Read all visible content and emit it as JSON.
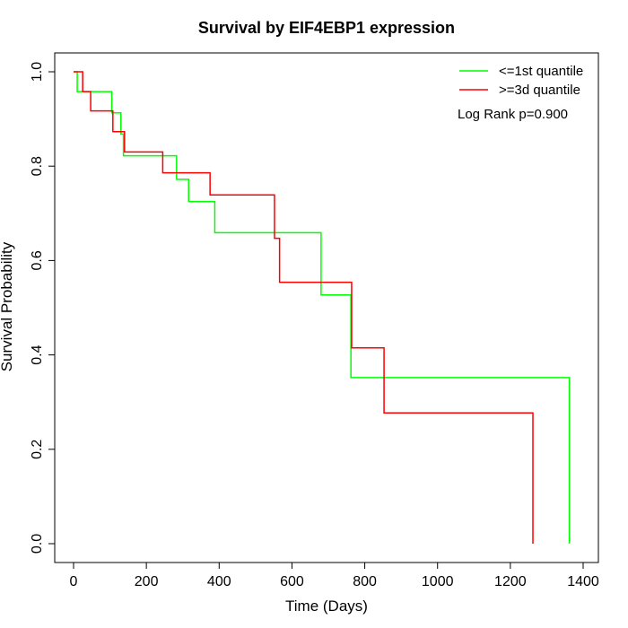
{
  "chart_data": {
    "type": "line",
    "title": "Survival by EIF4EBP1 expression",
    "xlabel": "Time (Days)",
    "ylabel": "Survival Probability",
    "xlim": [
      0,
      1400
    ],
    "ylim": [
      0,
      1
    ],
    "xticks": [
      0,
      200,
      400,
      600,
      800,
      1000,
      1200,
      1400
    ],
    "yticks": [
      0.0,
      0.2,
      0.4,
      0.6,
      0.8,
      1.0
    ],
    "xtick_labels": [
      "0",
      "200",
      "400",
      "600",
      "800",
      "1000",
      "1200",
      "1400"
    ],
    "ytick_labels": [
      "0.0",
      "0.2",
      "0.4",
      "0.6",
      "0.8",
      "1.0"
    ],
    "grid": false,
    "legend_position": "top-right",
    "annotation": "Log Rank p=0.900",
    "series": [
      {
        "name": "<=1st quantile",
        "color": "#00ff00",
        "step_points": [
          [
            0,
            1.0
          ],
          [
            10,
            0.958
          ],
          [
            105,
            0.913
          ],
          [
            130,
            0.868
          ],
          [
            137,
            0.822
          ],
          [
            283,
            0.772
          ],
          [
            316,
            0.725
          ],
          [
            388,
            0.659
          ],
          [
            680,
            0.527
          ],
          [
            762,
            0.352
          ],
          [
            1362,
            0.352
          ],
          [
            1362,
            0.0
          ]
        ]
      },
      {
        "name": ">=3d quantile",
        "color": "#ff0000",
        "step_points": [
          [
            0,
            1.0
          ],
          [
            25,
            0.958
          ],
          [
            47,
            0.917
          ],
          [
            108,
            0.873
          ],
          [
            140,
            0.83
          ],
          [
            245,
            0.786
          ],
          [
            375,
            0.739
          ],
          [
            552,
            0.647
          ],
          [
            566,
            0.554
          ],
          [
            764,
            0.415
          ],
          [
            853,
            0.277
          ],
          [
            1262,
            0.277
          ],
          [
            1262,
            0.0
          ]
        ]
      }
    ]
  }
}
